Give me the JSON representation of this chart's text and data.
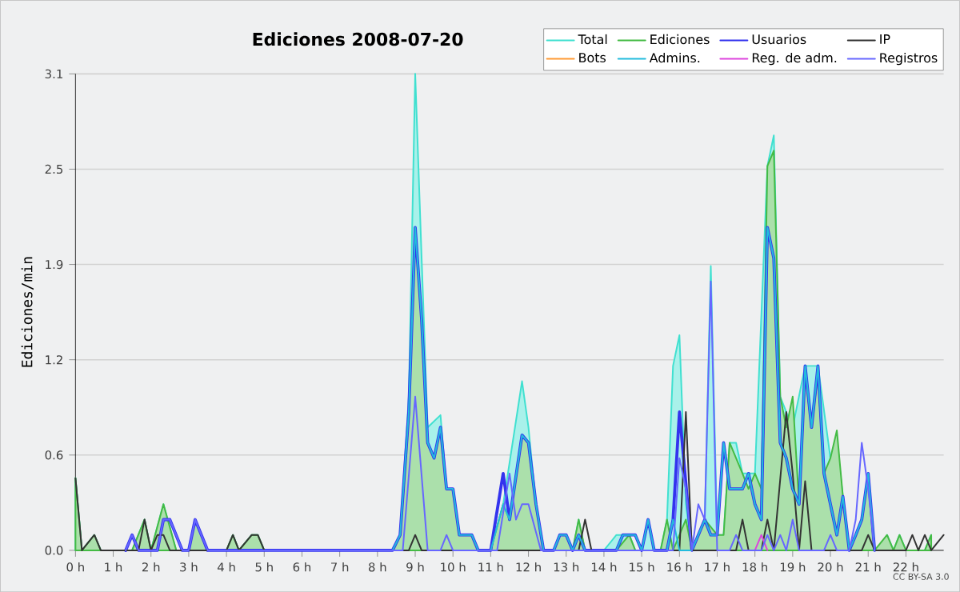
{
  "chart_data": {
    "type": "line",
    "title": "Ediciones  2008-07-20",
    "ylabel": "Ediciones/min",
    "annotations": [
      "CC BY-SA 3.0"
    ],
    "grid": "y",
    "legend": "top right",
    "marker": "none",
    "xlim": [
      0,
      23
    ],
    "ylim": [
      0,
      3.1
    ],
    "xticks": [
      {
        "value": 0,
        "label": "0 h"
      },
      {
        "value": 1,
        "label": "1 h"
      },
      {
        "value": 2,
        "label": "2 h"
      },
      {
        "value": 3,
        "label": "3 h"
      },
      {
        "value": 4,
        "label": "4 h"
      },
      {
        "value": 5,
        "label": "5 h"
      },
      {
        "value": 6,
        "label": "6 h"
      },
      {
        "value": 7,
        "label": "7 h"
      },
      {
        "value": 8,
        "label": "8 h"
      },
      {
        "value": 9,
        "label": "9 h"
      },
      {
        "value": 10,
        "label": "10 h"
      },
      {
        "value": 11,
        "label": "11 h"
      },
      {
        "value": 12,
        "label": "12 h"
      },
      {
        "value": 13,
        "label": "13 h"
      },
      {
        "value": 14,
        "label": "14 h"
      },
      {
        "value": 15,
        "label": "15 h"
      },
      {
        "value": 16,
        "label": "16 h"
      },
      {
        "value": 17,
        "label": "17 h"
      },
      {
        "value": 18,
        "label": "18 h"
      },
      {
        "value": 19,
        "label": "19 h"
      },
      {
        "value": 20,
        "label": "20 h"
      },
      {
        "value": 21,
        "label": "21 h"
      },
      {
        "value": 22,
        "label": "22 h"
      }
    ],
    "yticks": [
      {
        "value": 0,
        "label": "0.0"
      },
      {
        "value": 0.62,
        "label": "0.6"
      },
      {
        "value": 1.24,
        "label": "1.2"
      },
      {
        "value": 1.86,
        "label": "1.9"
      },
      {
        "value": 2.48,
        "label": "2.5"
      },
      3.1
    ],
    "series": [
      {
        "name": "Total",
        "type": "area",
        "color": "#40e0d0",
        "x": [
          0,
          0.17,
          0.5,
          0.67,
          1.5,
          1.83,
          2.0,
          2.33,
          2.67,
          3.0,
          3.17,
          3.5,
          4.0,
          4.17,
          4.33,
          4.67,
          4.83,
          5.0,
          8.4,
          8.6,
          8.83,
          9.0,
          9.17,
          9.33,
          9.5,
          9.67,
          9.83,
          10.0,
          10.17,
          10.5,
          10.67,
          11.0,
          11.33,
          11.5,
          11.83,
          12.0,
          12.2,
          12.4,
          12.67,
          12.83,
          13.0,
          13.17,
          13.33,
          13.5,
          14.0,
          14.33,
          14.67,
          14.83,
          15.0,
          15.17,
          15.33,
          15.5,
          15.67,
          15.83,
          16.0,
          16.17,
          16.33,
          16.5,
          16.67,
          16.83,
          17.0,
          17.17,
          17.33,
          17.5,
          17.67,
          17.83,
          18.0,
          18.17,
          18.33,
          18.5,
          18.67,
          18.83,
          19.0,
          19.17,
          19.33,
          19.5,
          19.67,
          19.83,
          20.0,
          20.17,
          20.33,
          20.5,
          20.67,
          20.83,
          21.0,
          21.17,
          21.33,
          21.5,
          21.67,
          21.83,
          22.0,
          22.5,
          22.67
        ],
        "values": [
          0.47,
          0,
          0.1,
          0,
          0,
          0.2,
          0,
          0.3,
          0,
          0,
          0.2,
          0,
          0,
          0.1,
          0,
          0.1,
          0.1,
          0,
          0,
          0.1,
          1.0,
          3.1,
          1.9,
          0.8,
          null,
          0.88,
          0.4,
          0.4,
          0.1,
          0.1,
          0,
          0,
          0.3,
          null,
          1.1,
          0.8,
          0.3,
          0,
          0,
          0.1,
          0.1,
          0,
          0.2,
          0,
          0,
          0.1,
          0.1,
          0,
          0,
          0.2,
          0,
          0,
          0.2,
          1.2,
          1.4,
          0.3,
          0,
          0.1,
          0.2,
          1.85,
          0.1,
          0.1,
          0.7,
          0.7,
          0.5,
          null,
          0.5,
          null,
          2.5,
          2.7,
          1.0,
          0.9,
          0.8,
          null,
          1.2,
          null,
          1.2,
          null,
          0.6,
          0.7,
          0.35,
          0,
          0.1,
          0.2,
          0.5,
          0,
          0,
          0.1,
          0,
          0.1,
          0,
          0,
          0.1
        ]
      },
      {
        "name": "Ediciones",
        "type": "area",
        "color": "#44bb44",
        "x": [
          0,
          0.17,
          0.5,
          0.67,
          1.5,
          1.83,
          2.0,
          2.33,
          2.67,
          3.0,
          3.17,
          3.5,
          4.0,
          4.17,
          4.33,
          4.67,
          4.83,
          5.0,
          8.4,
          8.6,
          8.83,
          9.0,
          9.17,
          9.33,
          9.5,
          9.67,
          9.83,
          10.0,
          10.17,
          10.5,
          10.67,
          11.0,
          11.33,
          11.5,
          11.83,
          12.0,
          12.2,
          12.4,
          12.67,
          12.83,
          13.0,
          13.17,
          13.33,
          13.5,
          14.33,
          14.67,
          14.83,
          15.5,
          15.67,
          15.83,
          16.0,
          16.17,
          16.33,
          16.67,
          17.0,
          17.17,
          17.33,
          17.5,
          17.67,
          17.83,
          18.0,
          18.17,
          18.33,
          18.5,
          18.67,
          18.83,
          19.0,
          19.17,
          19.33,
          19.5,
          19.67,
          19.83,
          20.0,
          20.17,
          20.33,
          20.5,
          20.67,
          20.83,
          21.0,
          21.17,
          21.5,
          21.67,
          21.83,
          22.0,
          22.5,
          22.67
        ],
        "values": [
          0.47,
          0,
          0.1,
          0,
          0,
          0.2,
          0,
          0.3,
          0,
          0,
          0.2,
          0,
          0,
          0.1,
          0,
          0.1,
          0.1,
          0,
          0,
          0.1,
          0.9,
          2.1,
          1.5,
          0.7,
          0.6,
          0.8,
          0.4,
          0.4,
          0.1,
          0.1,
          0,
          0,
          0.3,
          0.2,
          0.75,
          0.7,
          0.3,
          0,
          0,
          0.1,
          0.1,
          0,
          0.2,
          0,
          0,
          0.1,
          0,
          0,
          0.2,
          0,
          0.1,
          0.2,
          0,
          0.2,
          0.1,
          0.1,
          0.7,
          0.6,
          0.5,
          0.4,
          0.5,
          0.4,
          2.5,
          2.6,
          1.0,
          0.8,
          1.0,
          0.3,
          1.15,
          0.8,
          1.15,
          0.5,
          0.6,
          0.78,
          0.35,
          0,
          0.1,
          0.2,
          0.5,
          0,
          0.1,
          0,
          0.1,
          0,
          0,
          0.1
        ]
      },
      {
        "name": "Usuarios",
        "color": "#3333ee",
        "x": [
          1.33,
          1.5,
          1.67,
          2.17,
          2.33,
          2.5,
          2.83,
          3.0,
          3.17,
          3.5,
          8.4,
          8.6,
          8.83,
          9.0,
          9.17,
          9.33,
          9.5,
          9.67,
          9.83,
          10.0,
          10.17,
          10.5,
          10.67,
          11.0,
          11.33,
          11.5,
          11.83,
          12.0,
          12.2,
          12.4,
          12.67,
          12.83,
          13.0,
          13.17,
          13.33,
          13.5,
          14.33,
          14.5,
          14.83,
          15.0,
          15.17,
          15.33,
          15.67,
          15.83,
          16.0,
          16.33,
          16.67,
          16.83,
          17.0,
          17.17,
          17.33,
          17.67,
          17.83,
          18.0,
          18.17,
          18.33,
          18.5,
          18.67,
          18.83,
          19.0,
          19.17,
          19.33,
          19.5,
          19.67,
          19.83,
          20.0,
          20.17,
          20.33,
          20.5,
          20.67,
          20.83,
          21.0,
          21.17
        ],
        "values": [
          0,
          0.1,
          0,
          0,
          0.2,
          0.2,
          0,
          0,
          0.2,
          0,
          0,
          0.1,
          0.9,
          2.1,
          1.5,
          0.7,
          0.6,
          0.8,
          0.4,
          0.4,
          0.1,
          0.1,
          0,
          0,
          0.5,
          0.2,
          0.75,
          0.7,
          0.3,
          0,
          0,
          0.1,
          0.1,
          0,
          0.1,
          0,
          0,
          0.1,
          0.1,
          0,
          0.2,
          0,
          0,
          0.2,
          0.9,
          0,
          0.2,
          0.1,
          0.1,
          0.7,
          0.4,
          0.4,
          0.5,
          0.3,
          0.2,
          2.1,
          1.9,
          0.7,
          0.6,
          0.4,
          0.3,
          1.2,
          0.8,
          1.2,
          0.5,
          0.3,
          0.1,
          0.35,
          0,
          0.1,
          0.2,
          0.5,
          0
        ]
      },
      {
        "name": "IP",
        "color": "#333333",
        "x": [
          0,
          0.17,
          0.5,
          0.67,
          1.67,
          1.83,
          2.0,
          2.17,
          2.33,
          2.5,
          4.0,
          4.17,
          4.33,
          4.67,
          4.83,
          5.0,
          8.83,
          9.0,
          9.17,
          13.33,
          13.5,
          13.67,
          16.0,
          16.17,
          16.33,
          17.5,
          17.67,
          17.83,
          18.17,
          18.33,
          18.5,
          18.83,
          19.0,
          19.17,
          19.33,
          19.5,
          20.83,
          21.0,
          21.17,
          22.0,
          22.17,
          22.33,
          22.5,
          22.67,
          23
        ],
        "values": [
          0.47,
          0,
          0.1,
          0,
          0,
          0.2,
          0,
          0.1,
          0.1,
          0,
          0,
          0.1,
          0,
          0.1,
          0.1,
          0,
          0,
          0.1,
          0,
          0,
          0.2,
          0,
          0,
          0.9,
          0,
          0,
          0.2,
          0,
          0,
          0.2,
          0,
          0.9,
          0.5,
          0,
          0.45,
          0,
          0,
          0.1,
          0,
          0,
          0.1,
          0,
          0.1,
          0,
          0.1
        ]
      },
      {
        "name": "Bots",
        "color": "#ff9933"
      },
      {
        "name": "Admins.",
        "color": "#22bbdd",
        "x": [
          8.4,
          8.6,
          8.83,
          9.0,
          9.17,
          9.33,
          9.5,
          9.67,
          9.83,
          10.0,
          10.17,
          10.5,
          10.67,
          11.0,
          11.33,
          11.5,
          11.83,
          12.0,
          12.2,
          12.4,
          12.67,
          12.83,
          13.0,
          13.17,
          13.33,
          13.5,
          14.33,
          14.5,
          14.83,
          15.0,
          15.17,
          15.33,
          15.67,
          15.83,
          16.0,
          16.33,
          16.67,
          16.83,
          17.0,
          17.17,
          17.33,
          17.67,
          17.83,
          18.0,
          18.17,
          18.33,
          18.5,
          18.67,
          18.83,
          19.0,
          19.17,
          19.33,
          19.5,
          19.67,
          19.83,
          20.0,
          20.17,
          20.33,
          20.5,
          20.67,
          20.83,
          21.0,
          21.17
        ],
        "values": [
          0,
          0.1,
          0.9,
          2.1,
          1.5,
          0.7,
          0.6,
          0.8,
          0.4,
          0.4,
          0.1,
          0.1,
          0,
          0,
          0.3,
          0.2,
          0.75,
          0.7,
          0.3,
          0,
          0,
          0.1,
          0.1,
          0,
          0.1,
          0,
          0,
          0.1,
          0.1,
          0,
          0.2,
          0,
          0,
          0.2,
          0,
          0,
          0.2,
          0.1,
          0.1,
          0.7,
          0.4,
          0.4,
          0.5,
          0.3,
          0.2,
          2.1,
          1.9,
          0.7,
          0.6,
          0.4,
          0.3,
          1.2,
          0.8,
          1.2,
          0.5,
          0.3,
          0.1,
          0.35,
          0,
          0.1,
          0.2,
          0.5,
          0
        ]
      },
      {
        "name": "Reg. de adm.",
        "color": "#dd44dd",
        "x": [
          18.0,
          18.17,
          18.33
        ],
        "values": [
          0,
          0.1,
          0
        ]
      },
      {
        "name": "Registros",
        "color": "#6666ff",
        "x": [
          1.33,
          1.5,
          1.67,
          2.17,
          2.33,
          2.5,
          2.83,
          3.0,
          3.17,
          3.5,
          8.67,
          9.0,
          9.33,
          9.67,
          9.83,
          10.0,
          11.17,
          11.5,
          11.67,
          11.83,
          12.0,
          12.33,
          15.83,
          16.0,
          16.17,
          16.33,
          16.5,
          16.67,
          16.83,
          17.0,
          17.33,
          17.5,
          17.67,
          18.17,
          18.33,
          18.5,
          18.67,
          18.83,
          19.0,
          19.17,
          19.83,
          20.0,
          20.17,
          20.5,
          20.67,
          20.83,
          21.0,
          21.17
        ],
        "values": [
          0,
          0.1,
          0,
          0,
          0.2,
          0.2,
          0,
          0,
          0.2,
          0,
          0,
          1.0,
          0,
          0,
          0.1,
          0,
          0,
          0.5,
          0.2,
          0.3,
          0.3,
          0,
          0,
          0.6,
          0.4,
          0,
          0.3,
          0.2,
          1.75,
          0,
          0,
          0.1,
          0,
          0,
          0.1,
          0,
          0.1,
          0,
          0.2,
          0,
          0,
          0.1,
          0,
          0,
          0.2,
          0.7,
          0.4,
          0
        ]
      }
    ]
  }
}
